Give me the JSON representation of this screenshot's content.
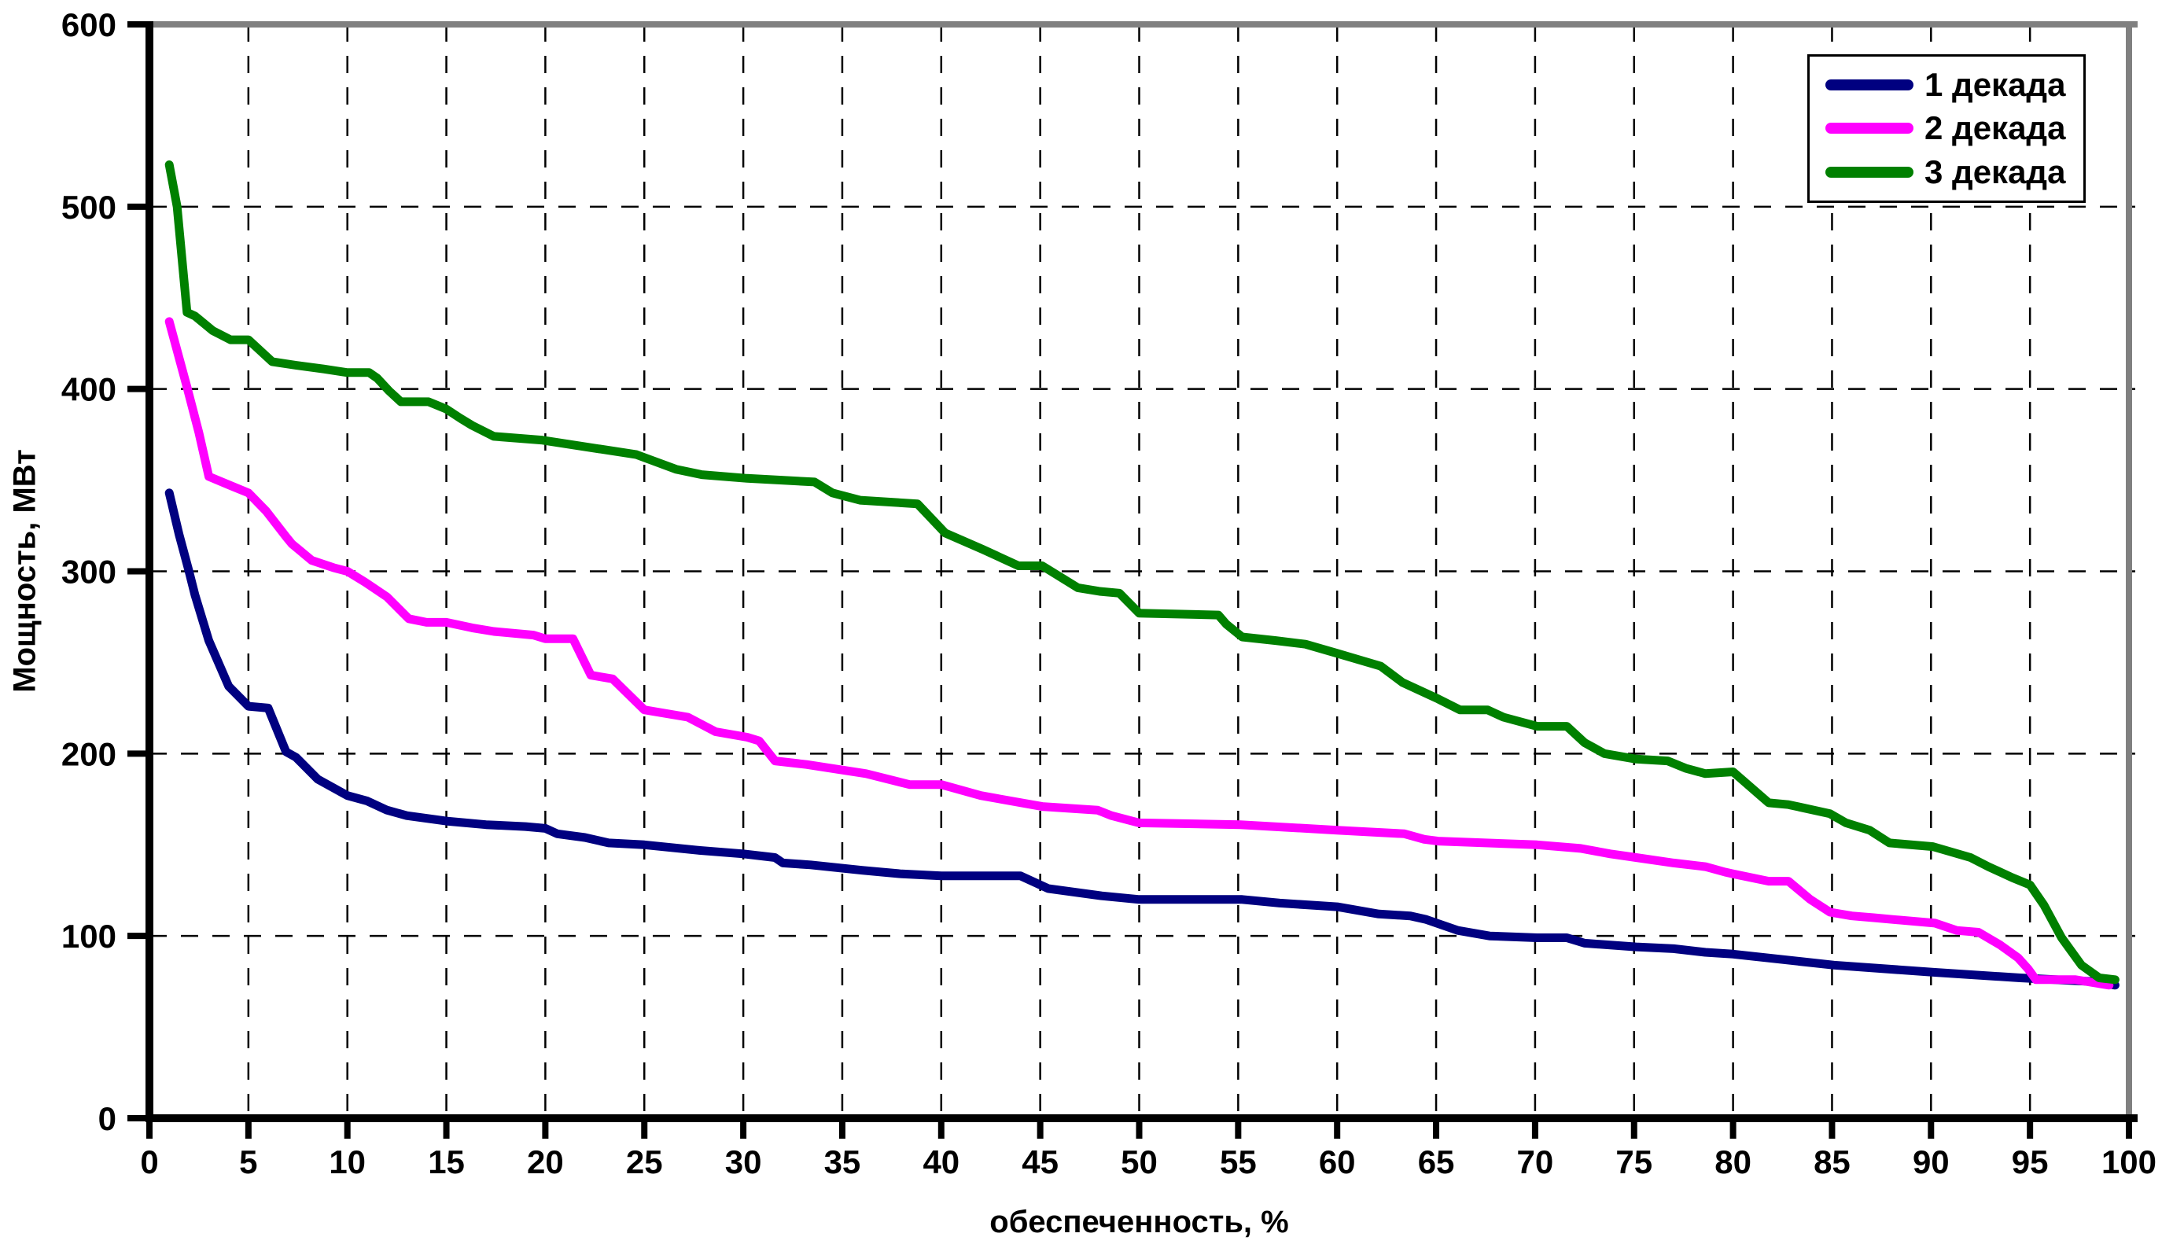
{
  "chart_data": {
    "type": "line",
    "xlabel": "обеспеченность, %",
    "ylabel": "Мощность, МВт",
    "xlim": [
      0,
      100
    ],
    "ylim": [
      0,
      600
    ],
    "x_ticks": [
      0,
      5,
      10,
      15,
      20,
      25,
      30,
      35,
      40,
      45,
      50,
      55,
      60,
      65,
      70,
      75,
      80,
      85,
      90,
      95,
      100
    ],
    "y_ticks": [
      0,
      100,
      200,
      300,
      400,
      500,
      600
    ],
    "grid": "dashed, vertical every 5, horizontal every 100",
    "legend_position": "top-right",
    "frame_color": "#808080",
    "axis_color": "#000000",
    "series": [
      {
        "name": "1 декада",
        "color": "#000080",
        "points": [
          [
            1,
            343
          ],
          [
            1.5,
            320
          ],
          [
            2,
            300
          ],
          [
            2.3,
            287
          ],
          [
            3,
            262
          ],
          [
            4,
            237
          ],
          [
            5,
            226
          ],
          [
            6,
            225
          ],
          [
            6.9,
            201
          ],
          [
            7.4,
            198
          ],
          [
            8.5,
            186
          ],
          [
            10,
            177
          ],
          [
            11,
            174
          ],
          [
            12,
            169
          ],
          [
            13,
            166
          ],
          [
            15,
            163
          ],
          [
            17,
            161
          ],
          [
            19,
            160
          ],
          [
            20,
            159
          ],
          [
            20.6,
            156
          ],
          [
            22,
            154
          ],
          [
            23.2,
            151
          ],
          [
            25,
            150
          ],
          [
            27.7,
            147
          ],
          [
            30,
            145
          ],
          [
            31.6,
            143
          ],
          [
            32,
            140
          ],
          [
            33.4,
            139
          ],
          [
            36,
            136
          ],
          [
            38,
            134
          ],
          [
            40,
            133
          ],
          [
            44,
            133
          ],
          [
            45.4,
            126
          ],
          [
            48.1,
            122
          ],
          [
            50,
            120
          ],
          [
            55.2,
            120
          ],
          [
            57.1,
            118
          ],
          [
            60,
            116
          ],
          [
            62.1,
            112
          ],
          [
            63.7,
            111
          ],
          [
            64.5,
            109
          ],
          [
            66.1,
            103
          ],
          [
            67.7,
            100
          ],
          [
            70.1,
            99
          ],
          [
            71.6,
            99
          ],
          [
            72.5,
            96
          ],
          [
            75.1,
            94
          ],
          [
            77,
            93
          ],
          [
            78.6,
            91
          ],
          [
            80,
            90
          ],
          [
            85.1,
            84
          ],
          [
            90.2,
            80
          ],
          [
            94.5,
            77
          ],
          [
            98.1,
            75
          ],
          [
            99.3,
            73
          ]
        ]
      },
      {
        "name": "2 декада",
        "color": "#FF00FF",
        "points": [
          [
            1,
            437
          ],
          [
            1.9,
            401
          ],
          [
            2.5,
            376
          ],
          [
            3,
            352
          ],
          [
            4.1,
            347
          ],
          [
            5,
            343
          ],
          [
            5.9,
            333
          ],
          [
            6.9,
            319
          ],
          [
            7.2,
            315
          ],
          [
            8.2,
            306
          ],
          [
            9.3,
            302
          ],
          [
            10,
            300
          ],
          [
            10.9,
            294
          ],
          [
            12,
            286
          ],
          [
            13.1,
            274
          ],
          [
            14,
            272
          ],
          [
            15,
            272
          ],
          [
            16.3,
            269
          ],
          [
            17.4,
            267
          ],
          [
            19.4,
            265
          ],
          [
            20,
            263
          ],
          [
            21.4,
            263
          ],
          [
            22.3,
            243
          ],
          [
            23.4,
            241
          ],
          [
            25,
            224
          ],
          [
            27.2,
            220
          ],
          [
            28.6,
            212
          ],
          [
            30.2,
            209
          ],
          [
            30.8,
            207
          ],
          [
            31.6,
            196
          ],
          [
            33.2,
            194
          ],
          [
            35,
            191
          ],
          [
            36.2,
            189
          ],
          [
            38.4,
            183
          ],
          [
            40,
            183
          ],
          [
            42,
            177
          ],
          [
            45.1,
            171
          ],
          [
            47.9,
            169
          ],
          [
            48.6,
            166
          ],
          [
            50,
            162
          ],
          [
            55.1,
            161
          ],
          [
            60,
            158
          ],
          [
            63.4,
            156
          ],
          [
            64.4,
            153
          ],
          [
            65.1,
            152
          ],
          [
            70.1,
            150
          ],
          [
            72.3,
            148
          ],
          [
            73.8,
            145
          ],
          [
            75.1,
            143
          ],
          [
            77,
            140
          ],
          [
            78.6,
            138
          ],
          [
            79.6,
            135
          ],
          [
            80,
            134
          ],
          [
            81.8,
            130
          ],
          [
            82.8,
            130
          ],
          [
            83.9,
            120
          ],
          [
            84.9,
            113
          ],
          [
            86,
            111
          ],
          [
            87.1,
            110
          ],
          [
            88.1,
            109
          ],
          [
            90.2,
            107
          ],
          [
            91.3,
            103
          ],
          [
            92.4,
            102
          ],
          [
            93.5,
            95
          ],
          [
            94.4,
            88
          ],
          [
            94.9,
            82
          ],
          [
            95.3,
            76
          ],
          [
            97.3,
            76
          ],
          [
            99,
            73
          ]
        ]
      },
      {
        "name": "3 декада",
        "color": "#008000",
        "points": [
          [
            1,
            523
          ],
          [
            1.4,
            500
          ],
          [
            1.9,
            442
          ],
          [
            2.3,
            440
          ],
          [
            3.2,
            432
          ],
          [
            4.1,
            427
          ],
          [
            5,
            427
          ],
          [
            6.2,
            415
          ],
          [
            7.4,
            413
          ],
          [
            8.8,
            411
          ],
          [
            10,
            409
          ],
          [
            11.1,
            409
          ],
          [
            11.5,
            406
          ],
          [
            12.1,
            399
          ],
          [
            12.7,
            393
          ],
          [
            14.1,
            393
          ],
          [
            15,
            389
          ],
          [
            15.7,
            384
          ],
          [
            16.3,
            380
          ],
          [
            17.4,
            374
          ],
          [
            19.8,
            372
          ],
          [
            24.6,
            364
          ],
          [
            26.6,
            356
          ],
          [
            27.9,
            353
          ],
          [
            30.2,
            351
          ],
          [
            33.6,
            349
          ],
          [
            34.5,
            343
          ],
          [
            35.9,
            339
          ],
          [
            38.8,
            337
          ],
          [
            40.2,
            321
          ],
          [
            42.1,
            312
          ],
          [
            43.9,
            303
          ],
          [
            45.1,
            303
          ],
          [
            46.9,
            291
          ],
          [
            48,
            289
          ],
          [
            49,
            288
          ],
          [
            50,
            277
          ],
          [
            54,
            276
          ],
          [
            54.4,
            271
          ],
          [
            55.2,
            264
          ],
          [
            56.9,
            262
          ],
          [
            58.4,
            260
          ],
          [
            60,
            255
          ],
          [
            62.2,
            248
          ],
          [
            63.3,
            239
          ],
          [
            65.1,
            230
          ],
          [
            66.2,
            224
          ],
          [
            67.6,
            224
          ],
          [
            68.4,
            220
          ],
          [
            70.1,
            215
          ],
          [
            71.6,
            215
          ],
          [
            72.5,
            206
          ],
          [
            73.5,
            200
          ],
          [
            75.1,
            197
          ],
          [
            76.7,
            196
          ],
          [
            77.6,
            192
          ],
          [
            78.6,
            189
          ],
          [
            80,
            190
          ],
          [
            81.8,
            173
          ],
          [
            82.8,
            172
          ],
          [
            84.9,
            167
          ],
          [
            85.7,
            162
          ],
          [
            86.9,
            158
          ],
          [
            87.9,
            151
          ],
          [
            90.1,
            149
          ],
          [
            92,
            143
          ],
          [
            92.9,
            138
          ],
          [
            94.1,
            132
          ],
          [
            95,
            128
          ],
          [
            95.7,
            117
          ],
          [
            96.6,
            99
          ],
          [
            97.6,
            84
          ],
          [
            98.5,
            77
          ],
          [
            99.3,
            76
          ]
        ]
      }
    ]
  }
}
